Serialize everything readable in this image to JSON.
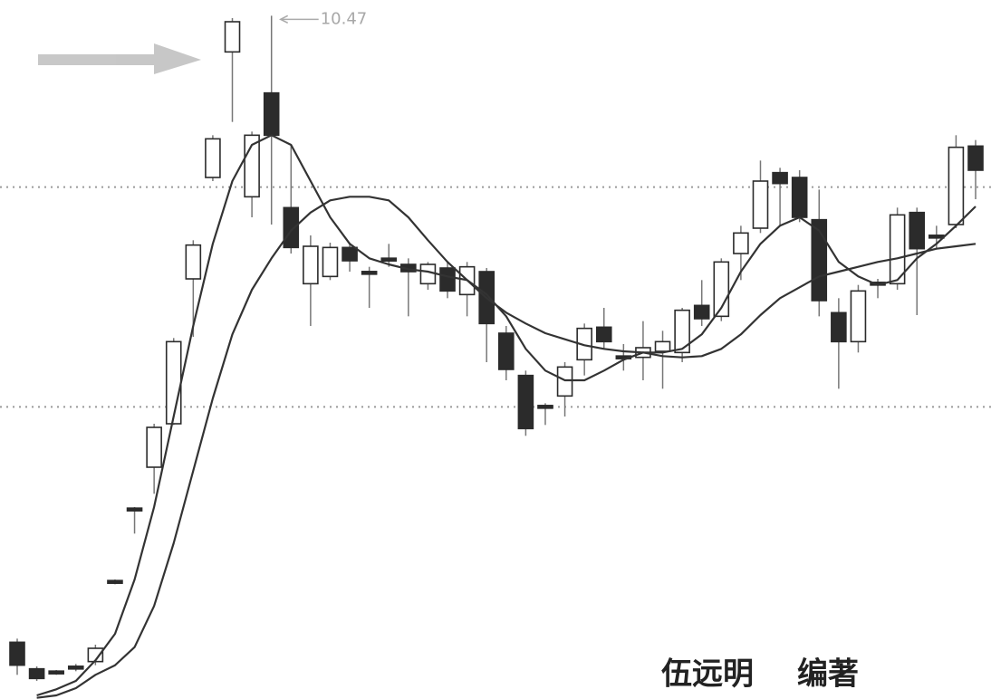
{
  "chart_data": {
    "type": "candlestick",
    "ylim": [
      4.81,
      10.6
    ],
    "open": [
      5.28,
      5.06,
      5.03,
      5.07,
      5.12,
      5.78,
      6.38,
      6.73,
      7.09,
      8.29,
      9.13,
      10.17,
      8.97,
      9.83,
      8.88,
      8.25,
      8.31,
      8.55,
      8.34,
      8.45,
      8.41,
      8.25,
      8.38,
      8.16,
      8.35,
      7.84,
      7.49,
      7.23,
      7.32,
      7.62,
      7.89,
      7.64,
      7.64,
      7.69,
      7.68,
      8.07,
      7.98,
      8.5,
      8.71,
      9.17,
      9.13,
      8.78,
      8.01,
      7.77,
      8.25,
      8.25,
      8.84,
      8.64,
      8.74,
      9.39
    ],
    "high": [
      5.31,
      5.08,
      5.05,
      5.1,
      5.26,
      5.8,
      6.4,
      7.09,
      7.8,
      8.61,
      9.48,
      10.45,
      9.51,
      10.47,
      9.4,
      8.65,
      8.59,
      8.59,
      8.39,
      8.58,
      8.46,
      8.43,
      8.43,
      8.43,
      8.38,
      7.9,
      7.53,
      7.26,
      7.6,
      7.92,
      8.05,
      7.75,
      7.94,
      7.86,
      8.05,
      8.28,
      8.46,
      8.73,
      9.27,
      9.21,
      9.19,
      9.03,
      8.13,
      8.24,
      8.29,
      8.88,
      8.88,
      8.73,
      9.48,
      9.44
    ],
    "low": [
      5.01,
      4.96,
      5.01,
      5.04,
      5.09,
      5.76,
      6.18,
      6.51,
      7.08,
      7.81,
      9.1,
      9.59,
      8.8,
      8.74,
      8.5,
      7.9,
      8.28,
      8.35,
      8.05,
      8.39,
      7.98,
      8.2,
      8.13,
      7.98,
      7.6,
      7.45,
      6.99,
      7.08,
      7.15,
      7.49,
      7.71,
      7.53,
      7.45,
      7.38,
      7.6,
      7.9,
      7.94,
      8.28,
      8.67,
      8.73,
      8.76,
      7.98,
      7.38,
      7.68,
      8.13,
      8.2,
      7.99,
      8.54,
      8.71,
      8.95
    ],
    "close": [
      5.09,
      4.98,
      5.03,
      5.07,
      5.23,
      5.78,
      6.38,
      7.06,
      7.77,
      8.57,
      9.45,
      10.42,
      9.48,
      9.48,
      8.55,
      8.56,
      8.55,
      8.44,
      8.34,
      8.45,
      8.35,
      8.41,
      8.19,
      8.39,
      7.92,
      7.54,
      7.05,
      7.23,
      7.56,
      7.88,
      7.77,
      7.64,
      7.72,
      7.77,
      8.03,
      7.96,
      8.43,
      8.67,
      9.1,
      9.08,
      8.8,
      8.11,
      7.77,
      8.19,
      8.25,
      8.82,
      8.54,
      8.64,
      9.38,
      9.19
    ],
    "up_color": "#ffffff",
    "down_color": "#2b2b2b",
    "series": [
      {
        "color": "#333333",
        "values": [
          null,
          4.84,
          4.89,
          4.96,
          5.13,
          5.35,
          5.8,
          6.4,
          7.15,
          7.9,
          8.58,
          9.1,
          9.4,
          9.48,
          9.4,
          9.1,
          8.8,
          8.58,
          8.46,
          8.41,
          8.37,
          8.35,
          8.31,
          8.28,
          8.16,
          7.98,
          7.71,
          7.53,
          7.45,
          7.45,
          7.53,
          7.62,
          7.68,
          7.68,
          7.71,
          7.83,
          8.05,
          8.35,
          8.58,
          8.73,
          8.8,
          8.69,
          8.43,
          8.31,
          8.24,
          8.28,
          8.46,
          8.58,
          8.73,
          8.89
        ]
      },
      {
        "color": "#333333",
        "values": [
          null,
          4.82,
          4.84,
          4.9,
          5.01,
          5.09,
          5.24,
          5.58,
          6.1,
          6.7,
          7.3,
          7.83,
          8.2,
          8.46,
          8.69,
          8.84,
          8.94,
          8.97,
          8.97,
          8.94,
          8.8,
          8.61,
          8.43,
          8.28,
          8.13,
          8.01,
          7.92,
          7.84,
          7.79,
          7.74,
          7.71,
          7.69,
          7.68,
          7.65,
          7.64,
          7.65,
          7.71,
          7.83,
          7.99,
          8.13,
          8.22,
          8.31,
          8.35,
          8.39,
          8.43,
          8.46,
          8.5,
          8.54,
          8.56,
          8.58
        ]
      }
    ],
    "levels": [
      9.05,
      7.23
    ]
  },
  "author": "伍远明",
  "role": "编著"
}
